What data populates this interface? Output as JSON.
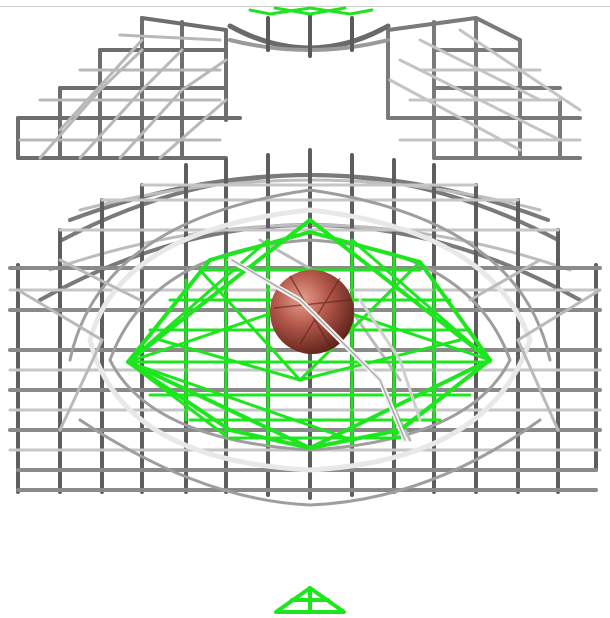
{
  "scene": {
    "description_visible_text": "",
    "colors": {
      "background": "#ffffff",
      "wire_dark": "#5a5a5a",
      "wire_mid": "#8c8c8c",
      "wire_light": "#c8c8c8",
      "wire_white": "#eeeeee",
      "green_mesh": "#1ee61e",
      "ball_base": "#b4584a",
      "ball_highlight": "#e6a08c",
      "ball_shadow": "#6a2a22"
    },
    "icons": [
      "wireframe-mesh",
      "green-wireframe-cone",
      "red-sphere",
      "green-triangle-marker"
    ]
  }
}
